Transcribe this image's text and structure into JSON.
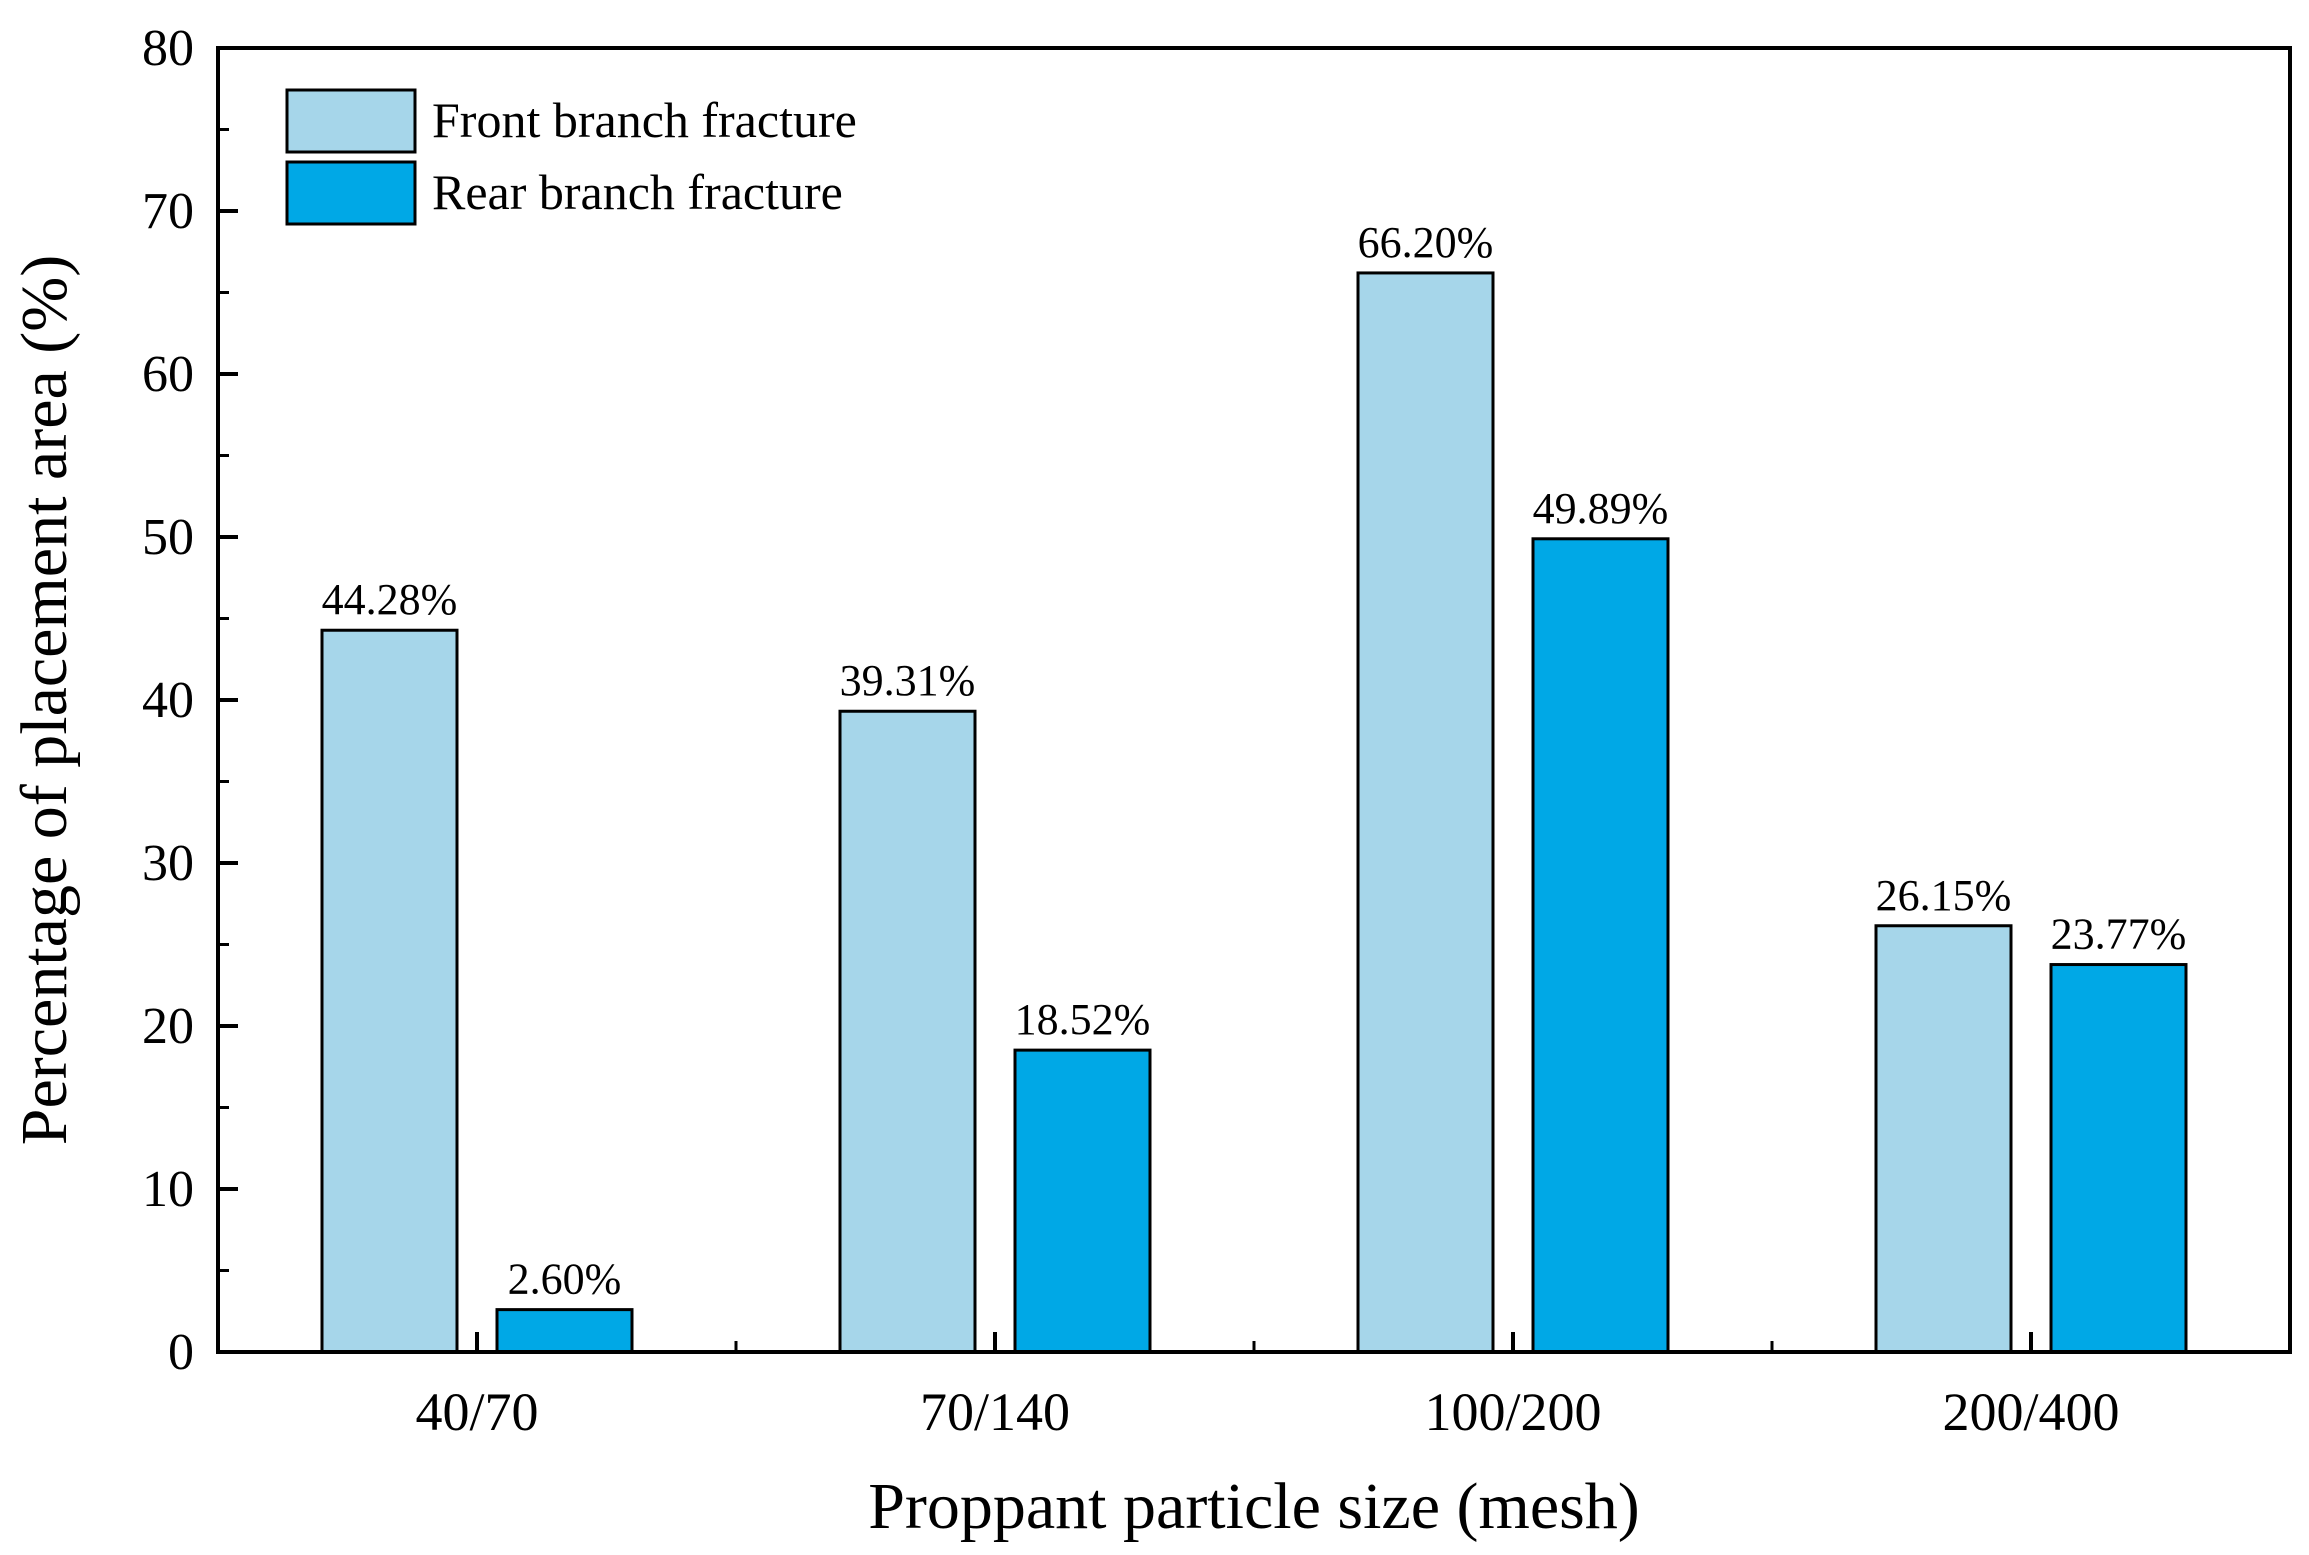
{
  "chart_data": {
    "type": "bar",
    "title": "",
    "xlabel": "Proppant particle size (mesh)",
    "ylabel": "Percentage of placement area (%)",
    "ylim": [
      0,
      80
    ],
    "yticks": [
      0,
      10,
      20,
      30,
      40,
      50,
      60,
      70,
      80
    ],
    "categories": [
      "40/70",
      "70/140",
      "100/200",
      "200/400"
    ],
    "series": [
      {
        "name": "Front branch fracture",
        "color": "#a6d6ea",
        "values": [
          44.28,
          39.31,
          66.2,
          26.15
        ],
        "labels": [
          "44.28%",
          "39.31%",
          "66.20%",
          "26.15%"
        ]
      },
      {
        "name": "Rear branch fracture",
        "color": "#00a8e6",
        "values": [
          2.6,
          18.52,
          49.89,
          23.77
        ],
        "labels": [
          "2.60%",
          "18.52%",
          "49.89%",
          "23.77%"
        ]
      }
    ],
    "legend_position": "top-left",
    "grid": false
  }
}
